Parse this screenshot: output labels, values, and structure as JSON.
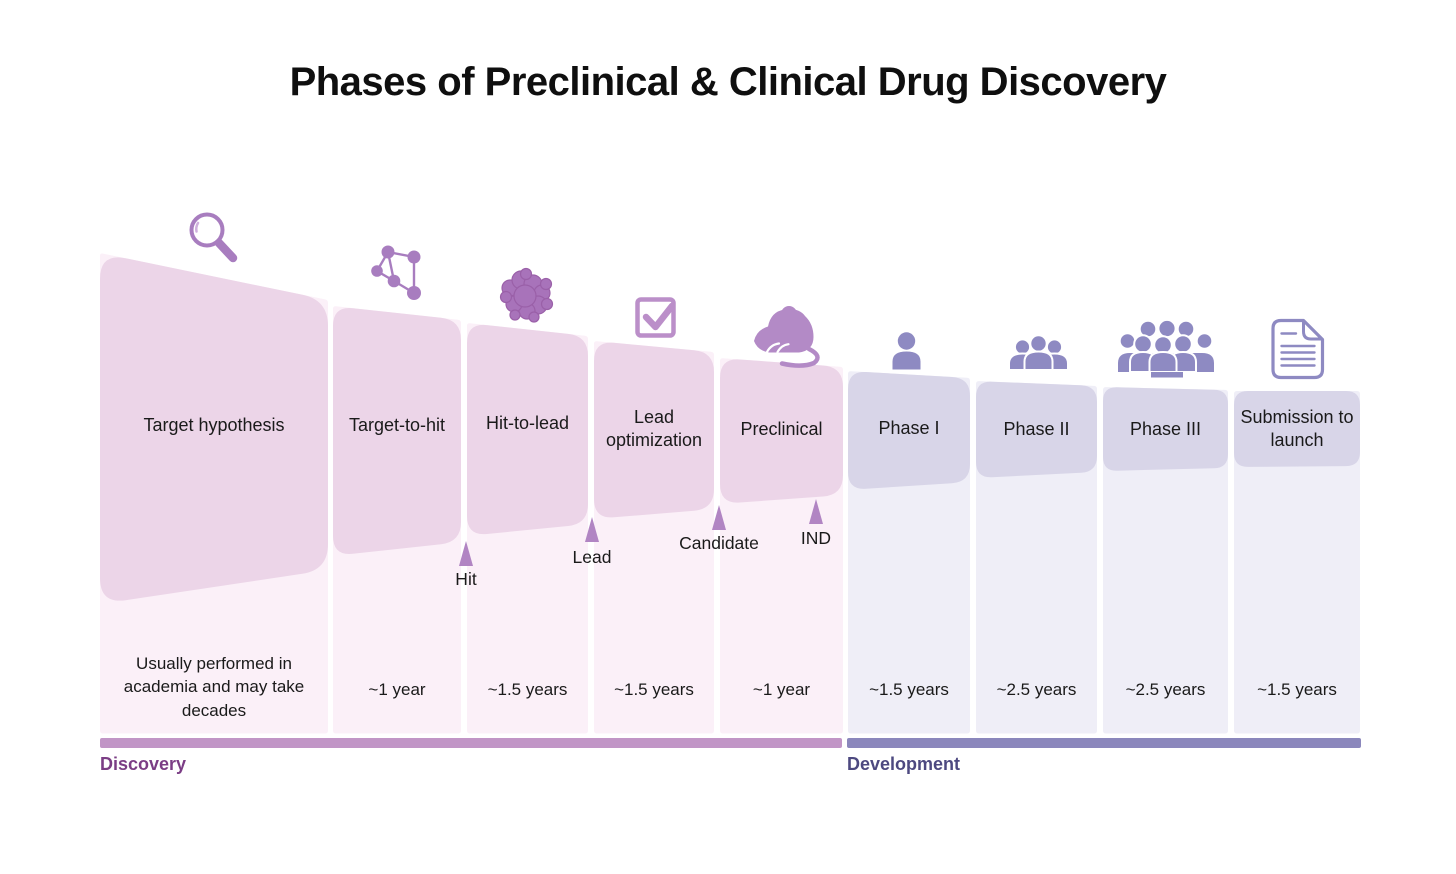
{
  "title": "Phases of Preclinical & Clinical Drug Discovery",
  "sections": {
    "discovery": {
      "label": "Discovery"
    },
    "development": {
      "label": "Development"
    }
  },
  "phases": [
    {
      "name": "Target hypothesis",
      "duration": "Usually performed in academia and may take decades",
      "section": "discovery",
      "icon": "magnifier-icon"
    },
    {
      "name": "Target-to-hit",
      "duration": "~1 year",
      "section": "discovery",
      "icon": "molecule-network-icon"
    },
    {
      "name": "Hit-to-lead",
      "duration": "~1.5 years",
      "section": "discovery",
      "icon": "protein-blob-icon"
    },
    {
      "name": "Lead optimization",
      "duration": "~1.5 years",
      "section": "discovery",
      "icon": "checkbox-icon"
    },
    {
      "name": "Preclinical",
      "duration": "~1 year",
      "section": "discovery",
      "icon": "mouse-icon"
    },
    {
      "name": "Phase I",
      "duration": "~1.5 years",
      "section": "development",
      "icon": "single-person-icon"
    },
    {
      "name": "Phase II",
      "duration": "~2.5 years",
      "section": "development",
      "icon": "small-group-icon"
    },
    {
      "name": "Phase III",
      "duration": "~2.5 years",
      "section": "development",
      "icon": "large-group-icon"
    },
    {
      "name": "Submission to launch",
      "duration": "~1.5 years",
      "section": "development",
      "icon": "document-icon"
    }
  ],
  "milestones": [
    {
      "label": "Hit"
    },
    {
      "label": "Lead"
    },
    {
      "label": "Candidate"
    },
    {
      "label": "IND"
    }
  ],
  "colors": {
    "discovery_block": "#ecd5e8",
    "discovery_strip": "#fbf0f8",
    "discovery_bar": "#c195c6",
    "discovery_label": "#7b3d85",
    "development_block": "#d8d5e8",
    "development_strip": "#efeef7",
    "development_bar": "#8b87bc",
    "development_label": "#4d4980",
    "icon_discovery": "#a87dbf",
    "icon_checkbox": "#bb8fc9",
    "icon_mouse": "#b38ac6",
    "icon_development": "#8e8ac2",
    "milestone_arrow": "#b185c3",
    "text": "#1a1a1a"
  }
}
